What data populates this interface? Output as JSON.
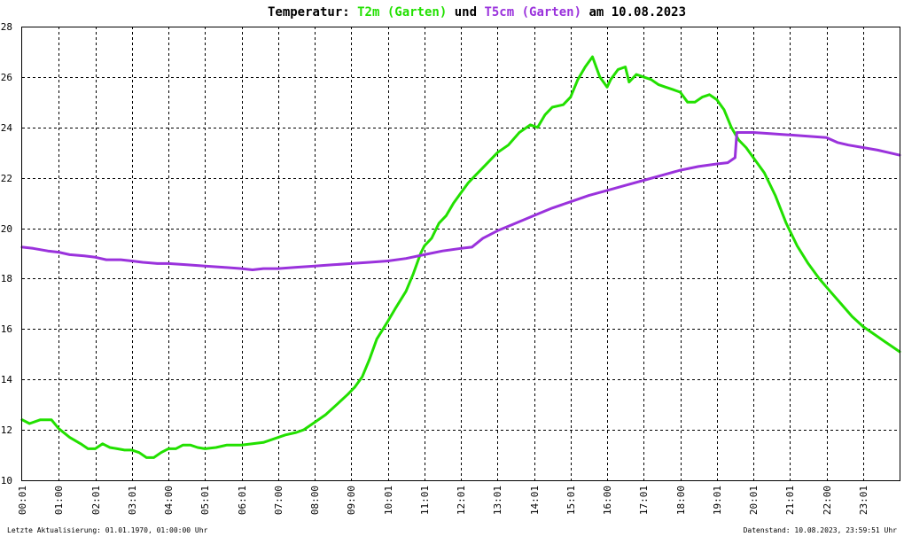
{
  "title": {
    "prefix": "Temperatur: ",
    "series1": "T2m (Garten)",
    "connector": " und ",
    "series2": "T5cm (Garten)",
    "suffix": " am 10.08.2023"
  },
  "footer": {
    "left": "Letzte Aktualisierung: 01.01.1970, 01:00:00 Uhr",
    "right": "Datenstand: 10.08.2023, 23:59:51 Uhr"
  },
  "colors": {
    "t2m": "#22e000",
    "t5cm": "#9a32dc",
    "grid": "#000000",
    "background": "#ffffff"
  },
  "chart_data": {
    "type": "line",
    "title": "Temperatur: T2m (Garten) und T5cm (Garten) am 10.08.2023",
    "xlabel": "",
    "ylabel": "",
    "xlim": [
      0,
      24
    ],
    "ylim": [
      10,
      28
    ],
    "yticks": [
      10,
      12,
      14,
      16,
      18,
      20,
      22,
      24,
      26,
      28
    ],
    "xticks": [
      {
        "x": 0,
        "label": "00:01"
      },
      {
        "x": 1,
        "label": "01:00"
      },
      {
        "x": 2,
        "label": "02:01"
      },
      {
        "x": 3,
        "label": "03:01"
      },
      {
        "x": 4,
        "label": "04:00"
      },
      {
        "x": 5,
        "label": "05:01"
      },
      {
        "x": 6,
        "label": "06:01"
      },
      {
        "x": 7,
        "label": "07:00"
      },
      {
        "x": 8,
        "label": "08:00"
      },
      {
        "x": 9,
        "label": "09:00"
      },
      {
        "x": 10,
        "label": "10:01"
      },
      {
        "x": 11,
        "label": "11:01"
      },
      {
        "x": 12,
        "label": "12:01"
      },
      {
        "x": 13,
        "label": "13:01"
      },
      {
        "x": 14,
        "label": "14:01"
      },
      {
        "x": 15,
        "label": "15:01"
      },
      {
        "x": 16,
        "label": "16:00"
      },
      {
        "x": 17,
        "label": "17:01"
      },
      {
        "x": 18,
        "label": "18:00"
      },
      {
        "x": 19,
        "label": "19:01"
      },
      {
        "x": 20,
        "label": "20:01"
      },
      {
        "x": 21,
        "label": "21:01"
      },
      {
        "x": 22,
        "label": "22:00"
      },
      {
        "x": 23,
        "label": "23:01"
      }
    ],
    "grid": true,
    "series": [
      {
        "name": "T2m (Garten)",
        "x": [
          0.0,
          0.2,
          0.5,
          0.8,
          1.0,
          1.3,
          1.6,
          1.8,
          2.0,
          2.2,
          2.4,
          2.6,
          2.8,
          3.0,
          3.2,
          3.4,
          3.6,
          3.8,
          4.0,
          4.2,
          4.4,
          4.6,
          4.8,
          5.0,
          5.3,
          5.6,
          6.0,
          6.3,
          6.6,
          6.9,
          7.2,
          7.5,
          7.7,
          8.0,
          8.3,
          8.6,
          8.9,
          9.1,
          9.3,
          9.5,
          9.7,
          10.0,
          10.2,
          10.5,
          10.7,
          10.9,
          11.0,
          11.2,
          11.4,
          11.6,
          11.8,
          12.0,
          12.2,
          12.4,
          12.6,
          12.8,
          13.0,
          13.3,
          13.6,
          13.9,
          14.1,
          14.3,
          14.5,
          14.8,
          15.0,
          15.2,
          15.4,
          15.6,
          15.8,
          16.0,
          16.1,
          16.3,
          16.5,
          16.6,
          16.8,
          17.0,
          17.2,
          17.4,
          17.6,
          17.8,
          18.0,
          18.2,
          18.4,
          18.6,
          18.8,
          19.0,
          19.2,
          19.4,
          19.6,
          19.8,
          20.0,
          20.3,
          20.6,
          20.9,
          21.2,
          21.5,
          21.8,
          22.1,
          22.4,
          22.7,
          23.0,
          23.3,
          23.6,
          23.8,
          24.0
        ],
        "values": [
          12.4,
          12.25,
          12.4,
          12.4,
          12.05,
          11.7,
          11.45,
          11.25,
          11.25,
          11.45,
          11.3,
          11.25,
          11.2,
          11.2,
          11.1,
          10.9,
          10.9,
          11.1,
          11.25,
          11.25,
          11.4,
          11.4,
          11.3,
          11.25,
          11.3,
          11.4,
          11.4,
          11.45,
          11.5,
          11.65,
          11.8,
          11.9,
          12.0,
          12.3,
          12.6,
          13.0,
          13.4,
          13.7,
          14.1,
          14.8,
          15.6,
          16.3,
          16.8,
          17.5,
          18.2,
          19.0,
          19.3,
          19.6,
          20.2,
          20.5,
          21.0,
          21.4,
          21.8,
          22.1,
          22.4,
          22.7,
          23.0,
          23.3,
          23.8,
          24.1,
          24.0,
          24.5,
          24.8,
          24.9,
          25.2,
          25.9,
          26.4,
          26.8,
          26.0,
          25.6,
          25.9,
          26.3,
          26.4,
          25.8,
          26.1,
          26.0,
          25.9,
          25.7,
          25.6,
          25.5,
          25.4,
          25.0,
          25.0,
          25.2,
          25.3,
          25.1,
          24.7,
          24.0,
          23.5,
          23.2,
          22.8,
          22.2,
          21.3,
          20.2,
          19.3,
          18.6,
          18.0,
          17.5,
          17.0,
          16.5,
          16.1,
          15.8,
          15.5,
          15.3,
          15.1
        ]
      },
      {
        "name": "T5cm (Garten)",
        "x": [
          0.0,
          0.3,
          0.7,
          1.0,
          1.3,
          1.7,
          2.0,
          2.3,
          2.7,
          3.0,
          3.3,
          3.7,
          4.0,
          4.5,
          5.0,
          5.5,
          6.0,
          6.3,
          6.6,
          7.0,
          7.5,
          8.0,
          8.5,
          9.0,
          9.5,
          10.0,
          10.5,
          11.0,
          11.5,
          12.0,
          12.3,
          12.6,
          13.0,
          13.5,
          14.0,
          14.5,
          15.0,
          15.5,
          16.0,
          16.5,
          17.0,
          17.5,
          18.0,
          18.5,
          19.0,
          19.3,
          19.5,
          19.55,
          19.7,
          20.0,
          20.5,
          21.0,
          21.5,
          22.0,
          22.3,
          22.6,
          23.0,
          23.4,
          23.7,
          24.0
        ],
        "values": [
          19.25,
          19.2,
          19.1,
          19.05,
          18.95,
          18.9,
          18.85,
          18.75,
          18.75,
          18.7,
          18.65,
          18.6,
          18.6,
          18.55,
          18.5,
          18.45,
          18.4,
          18.35,
          18.4,
          18.4,
          18.45,
          18.5,
          18.55,
          18.6,
          18.65,
          18.7,
          18.8,
          18.95,
          19.1,
          19.2,
          19.25,
          19.6,
          19.9,
          20.2,
          20.5,
          20.8,
          21.05,
          21.3,
          21.5,
          21.7,
          21.9,
          22.1,
          22.3,
          22.45,
          22.55,
          22.6,
          22.8,
          23.8,
          23.8,
          23.8,
          23.75,
          23.7,
          23.65,
          23.6,
          23.4,
          23.3,
          23.2,
          23.1,
          23.0,
          22.9
        ]
      }
    ]
  }
}
